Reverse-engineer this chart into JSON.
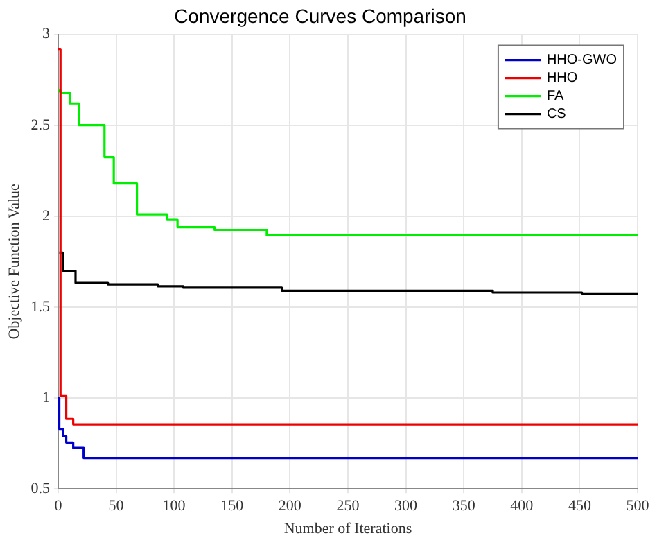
{
  "chart_data": {
    "type": "step",
    "title": "Convergence Curves Comparison",
    "xlabel": "Number of Iterations",
    "ylabel": "Objective Function Value",
    "xlim": [
      0,
      500
    ],
    "xticks": [
      0,
      50,
      100,
      150,
      200,
      250,
      300,
      350,
      400,
      450,
      500
    ],
    "ylim": [
      0.5,
      3
    ],
    "yticks": [
      0.5,
      1,
      1.5,
      2,
      2.5,
      3
    ],
    "grid": true,
    "legend": "top right",
    "marker": "none",
    "line_style": "solid",
    "series": [
      {
        "name": "HHO-GWO",
        "color": "#0000cc",
        "x": [
          0,
          1,
          4,
          7,
          13,
          22,
          500
        ],
        "values": [
          1.0,
          0.83,
          0.79,
          0.755,
          0.725,
          0.67,
          0.67
        ]
      },
      {
        "name": "HHO",
        "color": "#ee0000",
        "x": [
          0,
          2,
          7,
          13,
          500
        ],
        "values": [
          2.92,
          1.01,
          0.885,
          0.855,
          0.855
        ]
      },
      {
        "name": "FA",
        "color": "#00ee00",
        "x": [
          0,
          2,
          10,
          18,
          40,
          48,
          68,
          94,
          103,
          135,
          180,
          500
        ],
        "values": [
          2.69,
          2.68,
          2.62,
          2.5,
          2.325,
          2.18,
          2.01,
          1.98,
          1.94,
          1.925,
          1.895,
          1.895
        ]
      },
      {
        "name": "CS",
        "color": "#000000",
        "x": [
          1,
          4,
          15,
          43,
          86,
          108,
          193,
          375,
          452,
          500
        ],
        "values": [
          1.8,
          1.7,
          1.633,
          1.625,
          1.615,
          1.607,
          1.59,
          1.58,
          1.575,
          1.575
        ]
      }
    ]
  }
}
